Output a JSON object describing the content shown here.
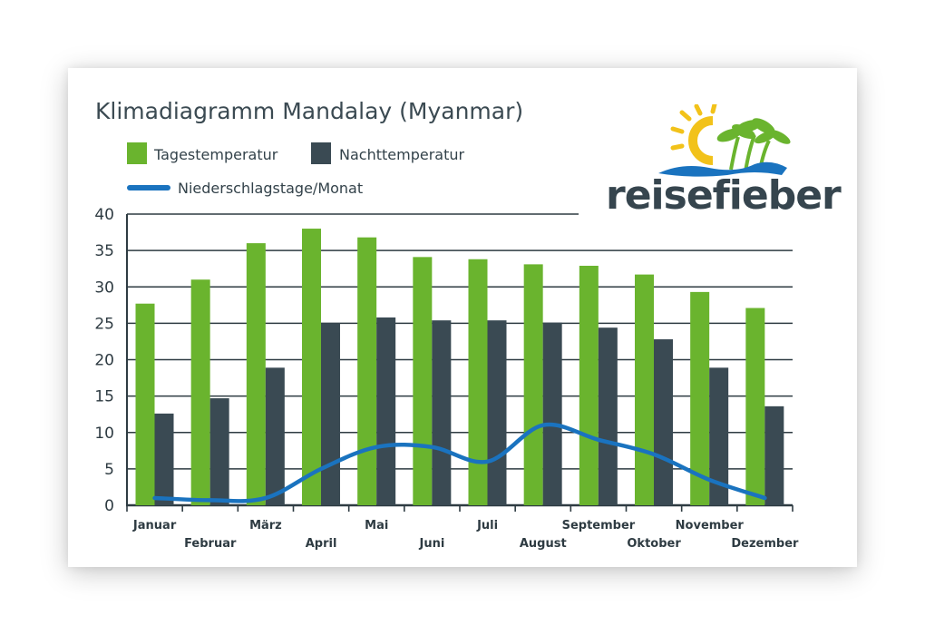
{
  "chart_data": {
    "type": "bar",
    "title": "Klimadiagramm Mandalay (Myanmar)",
    "categories": [
      "Januar",
      "Februar",
      "März",
      "April",
      "Mai",
      "Juni",
      "Juli",
      "August",
      "September",
      "Oktober",
      "November",
      "Dezember"
    ],
    "series": [
      {
        "name": "Tagestemperatur",
        "type": "bar",
        "color": "#6ab42e",
        "values": [
          27.7,
          31.0,
          36.0,
          38.0,
          36.8,
          34.1,
          33.8,
          33.1,
          32.9,
          31.7,
          29.3,
          27.1
        ]
      },
      {
        "name": "Nachttemperatur",
        "type": "bar",
        "color": "#3a4a53",
        "values": [
          12.6,
          14.7,
          18.9,
          25.0,
          25.8,
          25.4,
          25.4,
          25.1,
          24.4,
          22.8,
          18.9,
          13.6
        ]
      },
      {
        "name": "Niederschlagstage/Monat",
        "type": "line",
        "color": "#1a73bf",
        "values": [
          1.0,
          0.7,
          1.0,
          5.0,
          8.0,
          8.0,
          6.0,
          11.0,
          9.0,
          7.0,
          3.5,
          1.0
        ]
      }
    ],
    "yticks": [
      0,
      5,
      10,
      15,
      20,
      25,
      30,
      35,
      40
    ],
    "ylim": [
      0,
      40
    ],
    "grid": true,
    "legend": "top-left"
  },
  "brand": {
    "name": "reisefieber",
    "colors": {
      "sun": "#f2c21a",
      "palm": "#6ab42e",
      "water": "#1a73bf",
      "text": "#36454e"
    }
  }
}
